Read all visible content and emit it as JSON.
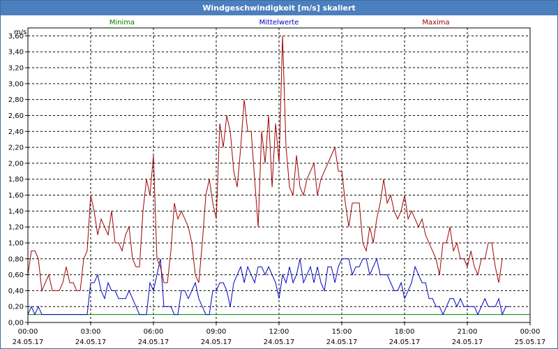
{
  "window": {
    "title": "Windgeschwindigkeit [m/s] skaliert"
  },
  "chart_data": {
    "type": "line",
    "title": "Windgeschwindigkeit [m/s] skaliert",
    "ylabel": "m/s",
    "ylim": [
      0,
      3.7
    ],
    "yticks": [
      "0,00",
      "0,20",
      "0,40",
      "0,60",
      "0,80",
      "1,00",
      "1,20",
      "1,40",
      "1,60",
      "1,80",
      "2,00",
      "2,20",
      "2,40",
      "2,60",
      "2,80",
      "3,00",
      "3,20",
      "3,40",
      "3,60"
    ],
    "x_range_hours": [
      0,
      24
    ],
    "xticks": [
      {
        "time": "00:00",
        "date": "24.05.17"
      },
      {
        "time": "03:00",
        "date": "24.05.17"
      },
      {
        "time": "06:00",
        "date": "24.05.17"
      },
      {
        "time": "09:00",
        "date": "24.05.17"
      },
      {
        "time": "12:00",
        "date": "24.05.17"
      },
      {
        "time": "15:00",
        "date": "24.05.17"
      },
      {
        "time": "18:00",
        "date": "24.05.17"
      },
      {
        "time": "21:00",
        "date": "24.05.17"
      },
      {
        "time": "00:00",
        "date": "25.05.17"
      }
    ],
    "grid": true,
    "x_step_hours": 0.1667,
    "series": [
      {
        "name": "Minima",
        "color": "#008000",
        "values": [
          0.1,
          0.1,
          0.1,
          0.1,
          0.1,
          0.1,
          0.1,
          0.1,
          0.1,
          0.1,
          0.1,
          0.1,
          0.1,
          0.1,
          0.1,
          0.1,
          0.1,
          0.1,
          0.1,
          0.1,
          0.1,
          0.1,
          0.1,
          0.1,
          0.1,
          0.1,
          0.1,
          0.1,
          0.1,
          0.1,
          0.1,
          0.1,
          0.1,
          0.1,
          0.1,
          0.1,
          0.1,
          0.1,
          0.1,
          0.1,
          0.1,
          0.1,
          0.1,
          0.1,
          0.1,
          0.1,
          0.1,
          0.1,
          0.1,
          0.1,
          0.1,
          0.1,
          0.1,
          0.1,
          0.1,
          0.1,
          0.1,
          0.1,
          0.1,
          0.1,
          0.1,
          0.1,
          0.1,
          0.1,
          0.1,
          0.1,
          0.1,
          0.1,
          0.1,
          0.1,
          0.1,
          0.1,
          0.1,
          0.1,
          0.1,
          0.1,
          0.1,
          0.1,
          0.1,
          0.1,
          0.1,
          0.1,
          0.1,
          0.1,
          0.1,
          0.1,
          0.1,
          0.1,
          0.1,
          0.1,
          0.1,
          0.1,
          0.1,
          0.1,
          0.1,
          0.1,
          0.1,
          0.1,
          0.1,
          0.1,
          0.1,
          0.1,
          0.1,
          0.1,
          0.1,
          0.1,
          0.1,
          0.1,
          0.1,
          0.1,
          0.1,
          0.1,
          0.1,
          0.1,
          0.1,
          0.1,
          0.1,
          0.1,
          0.1,
          0.1,
          0.1,
          0.1,
          0.1,
          0.1,
          0.1,
          0.1,
          0.1,
          0.1,
          0.1,
          0.1,
          0.1,
          0.1,
          0.1,
          0.1,
          0.1,
          0.1,
          0.1,
          0.1,
          0.1,
          0.1,
          0.1,
          0.1,
          0.1,
          0.1,
          0.1
        ]
      },
      {
        "name": "Mittelwerte",
        "color": "#0000c0",
        "values": [
          0.1,
          0.2,
          0.1,
          0.2,
          0.1,
          0.1,
          0.1,
          0.1,
          0.1,
          0.1,
          0.1,
          0.1,
          0.1,
          0.1,
          0.1,
          0.1,
          0.1,
          0.1,
          0.5,
          0.5,
          0.6,
          0.4,
          0.3,
          0.5,
          0.4,
          0.4,
          0.3,
          0.3,
          0.3,
          0.4,
          0.3,
          0.2,
          0.1,
          0.1,
          0.1,
          0.5,
          0.4,
          0.6,
          0.8,
          0.2,
          0.2,
          0.2,
          0.1,
          0.1,
          0.4,
          0.4,
          0.3,
          0.4,
          0.5,
          0.3,
          0.2,
          0.1,
          0.1,
          0.4,
          0.4,
          0.5,
          0.5,
          0.4,
          0.2,
          0.5,
          0.6,
          0.7,
          0.5,
          0.7,
          0.6,
          0.5,
          0.7,
          0.7,
          0.6,
          0.7,
          0.6,
          0.5,
          0.3,
          0.6,
          0.5,
          0.7,
          0.5,
          0.6,
          0.8,
          0.5,
          0.6,
          0.7,
          0.5,
          0.7,
          0.5,
          0.4,
          0.7,
          0.7,
          0.5,
          0.7,
          0.8,
          0.8,
          0.8,
          0.6,
          0.7,
          0.7,
          0.8,
          0.8,
          0.6,
          0.7,
          0.8,
          0.6,
          0.6,
          0.6,
          0.5,
          0.4,
          0.4,
          0.5,
          0.3,
          0.4,
          0.5,
          0.7,
          0.6,
          0.5,
          0.5,
          0.3,
          0.3,
          0.2,
          0.2,
          0.1,
          0.2,
          0.3,
          0.3,
          0.2,
          0.3,
          0.2,
          0.2,
          0.2,
          0.2,
          0.1,
          0.2,
          0.3,
          0.2,
          0.2,
          0.2,
          0.3,
          0.1,
          0.2,
          0.2
        ]
      },
      {
        "name": "Maxima",
        "color": "#a00000",
        "values": [
          0.6,
          0.9,
          0.9,
          0.8,
          0.4,
          0.5,
          0.6,
          0.4,
          0.4,
          0.4,
          0.5,
          0.7,
          0.5,
          0.5,
          0.4,
          0.4,
          0.8,
          0.9,
          1.6,
          1.4,
          1.1,
          1.3,
          1.2,
          1.1,
          1.4,
          1.0,
          1.0,
          0.9,
          1.1,
          1.2,
          0.8,
          0.7,
          0.7,
          1.4,
          1.8,
          1.6,
          2.1,
          0.8,
          0.7,
          0.5,
          0.5,
          0.9,
          1.5,
          1.3,
          1.4,
          1.3,
          1.2,
          1.0,
          0.6,
          0.5,
          1.0,
          1.6,
          1.8,
          1.5,
          1.3,
          2.5,
          2.2,
          2.6,
          2.4,
          1.9,
          1.7,
          2.2,
          2.8,
          2.4,
          2.4,
          1.8,
          1.2,
          2.4,
          2.0,
          2.6,
          1.7,
          2.5,
          2.0,
          3.6,
          2.2,
          1.7,
          1.6,
          2.1,
          1.7,
          1.6,
          1.8,
          1.9,
          2.0,
          1.6,
          1.8,
          1.9,
          2.0,
          2.1,
          2.2,
          1.9,
          1.9,
          1.5,
          1.2,
          1.5,
          1.5,
          1.5,
          1.0,
          0.9,
          1.2,
          1.0,
          1.3,
          1.5,
          1.8,
          1.5,
          1.6,
          1.4,
          1.3,
          1.4,
          1.6,
          1.3,
          1.4,
          1.3,
          1.2,
          1.3,
          1.1,
          1.0,
          0.9,
          0.8,
          0.6,
          1.0,
          1.0,
          1.2,
          0.9,
          1.0,
          0.8,
          0.8,
          0.7,
          0.9,
          0.7,
          0.6,
          0.8,
          0.8,
          1.0,
          1.0,
          0.7,
          0.5,
          0.8
        ]
      }
    ]
  }
}
